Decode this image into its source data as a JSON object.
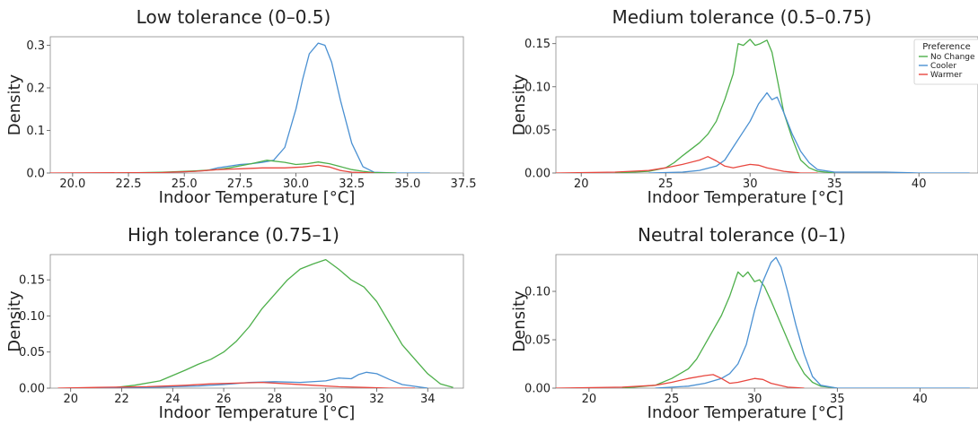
{
  "colors": {
    "No Change": "#4daf4a",
    "Cooler": "#4a90d2",
    "Warmer": "#e8473f"
  },
  "legend": {
    "title": "Preference",
    "placement": "upper right of Medium tolerance panel",
    "entries": [
      "No Change",
      "Cooler",
      "Warmer"
    ]
  },
  "chart_data": [
    {
      "type": "line",
      "title": "Low tolerance (0–0.5)",
      "xlabel": "Indoor Temperature [°C]",
      "ylabel": "Density",
      "xlim": [
        19.0,
        37.5
      ],
      "ylim": [
        0,
        0.32
      ],
      "xticks": [
        20.0,
        22.5,
        25.0,
        27.5,
        30.0,
        32.5,
        35.0,
        37.5
      ],
      "yticks": [
        0.0,
        0.1,
        0.2,
        0.3
      ],
      "xtick_decimals": 1,
      "ytick_decimals": 1,
      "show_legend": false,
      "series": [
        {
          "name": "Cooler",
          "x": [
            22.5,
            24.0,
            25.0,
            26.0,
            26.5,
            27.0,
            27.5,
            28.0,
            28.5,
            29.0,
            29.5,
            30.0,
            30.3,
            30.6,
            31.0,
            31.3,
            31.6,
            32.0,
            32.5,
            33.0,
            33.5,
            34.5,
            36.0
          ],
          "y": [
            0.0,
            0.001,
            0.003,
            0.006,
            0.012,
            0.016,
            0.02,
            0.022,
            0.025,
            0.03,
            0.06,
            0.15,
            0.22,
            0.28,
            0.305,
            0.3,
            0.26,
            0.17,
            0.07,
            0.015,
            0.002,
            0.0,
            0.0
          ]
        },
        {
          "name": "No Change",
          "x": [
            22.0,
            24.0,
            25.5,
            26.5,
            27.0,
            28.0,
            28.7,
            29.5,
            30.0,
            30.5,
            31.0,
            31.5,
            32.0,
            32.5,
            33.0,
            33.5,
            34.5
          ],
          "y": [
            0.0,
            0.002,
            0.005,
            0.008,
            0.012,
            0.022,
            0.03,
            0.025,
            0.02,
            0.022,
            0.026,
            0.022,
            0.015,
            0.008,
            0.004,
            0.001,
            0.0
          ]
        },
        {
          "name": "Warmer",
          "x": [
            19.0,
            24.0,
            25.5,
            26.5,
            27.5,
            28.5,
            29.5,
            30.3,
            31.0,
            31.5,
            32.0,
            32.5,
            33.5
          ],
          "y": [
            0.0,
            0.001,
            0.004,
            0.008,
            0.01,
            0.012,
            0.012,
            0.014,
            0.018,
            0.014,
            0.006,
            0.002,
            0.0
          ]
        }
      ]
    },
    {
      "type": "line",
      "title": "Medium tolerance (0.5–0.75)",
      "xlabel": "Indoor Temperature [°C]",
      "ylabel": "Density",
      "xlim": [
        18.5,
        43.5
      ],
      "ylim": [
        0,
        0.158
      ],
      "xticks": [
        20,
        25,
        30,
        35,
        40
      ],
      "yticks": [
        0.0,
        0.05,
        0.1,
        0.15
      ],
      "xtick_decimals": 0,
      "ytick_decimals": 2,
      "show_legend": true,
      "series": [
        {
          "name": "No Change",
          "x": [
            22.0,
            24.0,
            25.0,
            25.5,
            26.0,
            27.0,
            27.5,
            28.0,
            28.5,
            29.0,
            29.3,
            29.6,
            30.0,
            30.3,
            30.6,
            31.0,
            31.3,
            31.6,
            32.0,
            32.5,
            33.0,
            33.5,
            34.0,
            35.0
          ],
          "y": [
            0.0,
            0.002,
            0.006,
            0.012,
            0.02,
            0.035,
            0.045,
            0.06,
            0.085,
            0.115,
            0.15,
            0.148,
            0.155,
            0.148,
            0.15,
            0.154,
            0.14,
            0.11,
            0.07,
            0.04,
            0.015,
            0.006,
            0.002,
            0.0
          ]
        },
        {
          "name": "Cooler",
          "x": [
            24.0,
            26.0,
            27.0,
            28.0,
            28.5,
            29.0,
            29.5,
            30.0,
            30.5,
            31.0,
            31.3,
            31.6,
            32.0,
            32.5,
            33.0,
            33.5,
            34.0,
            35.0,
            38.0,
            40.0,
            43.0
          ],
          "y": [
            0.0,
            0.001,
            0.003,
            0.008,
            0.015,
            0.03,
            0.045,
            0.06,
            0.08,
            0.093,
            0.085,
            0.088,
            0.07,
            0.045,
            0.025,
            0.012,
            0.004,
            0.001,
            0.001,
            0.0,
            0.0
          ]
        },
        {
          "name": "Warmer",
          "x": [
            18.5,
            22.0,
            24.0,
            25.0,
            26.0,
            27.0,
            27.5,
            28.0,
            28.5,
            29.0,
            29.5,
            30.0,
            30.5,
            31.0,
            32.0,
            33.0,
            34.0
          ],
          "y": [
            0.0,
            0.001,
            0.003,
            0.006,
            0.01,
            0.015,
            0.019,
            0.014,
            0.008,
            0.006,
            0.008,
            0.01,
            0.009,
            0.006,
            0.002,
            0.0,
            0.0
          ]
        }
      ]
    },
    {
      "type": "line",
      "title": "High tolerance (0.75–1)",
      "xlabel": "Indoor Temperature [°C]",
      "ylabel": "Density",
      "xlim": [
        19.2,
        35.4
      ],
      "ylim": [
        0,
        0.185
      ],
      "xticks": [
        20,
        22,
        24,
        26,
        28,
        30,
        32,
        34
      ],
      "yticks": [
        0.0,
        0.05,
        0.1,
        0.15
      ],
      "xtick_decimals": 0,
      "ytick_decimals": 2,
      "show_legend": false,
      "series": [
        {
          "name": "No Change",
          "x": [
            21.5,
            22.5,
            23.5,
            24.5,
            25.0,
            25.5,
            26.0,
            26.5,
            27.0,
            27.5,
            28.0,
            28.5,
            29.0,
            29.5,
            30.0,
            30.5,
            31.0,
            31.5,
            32.0,
            32.5,
            33.0,
            33.5,
            34.0,
            34.5,
            35.0
          ],
          "y": [
            0.0,
            0.004,
            0.01,
            0.025,
            0.033,
            0.04,
            0.05,
            0.065,
            0.085,
            0.11,
            0.13,
            0.15,
            0.165,
            0.172,
            0.178,
            0.165,
            0.15,
            0.14,
            0.12,
            0.09,
            0.06,
            0.04,
            0.02,
            0.006,
            0.001
          ]
        },
        {
          "name": "Cooler",
          "x": [
            21.0,
            23.0,
            25.0,
            26.0,
            27.0,
            28.0,
            29.0,
            30.0,
            30.5,
            31.0,
            31.3,
            31.6,
            32.0,
            32.5,
            33.0,
            34.0
          ],
          "y": [
            0.0,
            0.001,
            0.003,
            0.005,
            0.008,
            0.009,
            0.008,
            0.01,
            0.014,
            0.013,
            0.019,
            0.022,
            0.02,
            0.012,
            0.005,
            0.0
          ]
        },
        {
          "name": "Warmer",
          "x": [
            19.5,
            21.0,
            23.0,
            24.5,
            25.5,
            26.5,
            27.5,
            28.5,
            29.5,
            30.5,
            31.5,
            32.5,
            33.5
          ],
          "y": [
            0.0,
            0.001,
            0.002,
            0.004,
            0.006,
            0.007,
            0.008,
            0.006,
            0.004,
            0.002,
            0.001,
            0.0,
            0.0
          ]
        }
      ]
    },
    {
      "type": "line",
      "title": "Neutral tolerance (0–1)",
      "xlabel": "Indoor Temperature [°C]",
      "ylabel": "Density",
      "xlim": [
        18.0,
        43.5
      ],
      "ylim": [
        0,
        0.138
      ],
      "xticks": [
        20,
        25,
        30,
        35,
        40
      ],
      "yticks": [
        0.0,
        0.05,
        0.1
      ],
      "xtick_decimals": 0,
      "ytick_decimals": 2,
      "show_legend": false,
      "series": [
        {
          "name": "No Change",
          "x": [
            22.0,
            24.0,
            25.0,
            26.0,
            26.5,
            27.0,
            27.5,
            28.0,
            28.5,
            29.0,
            29.3,
            29.6,
            30.0,
            30.3,
            30.6,
            31.0,
            31.5,
            32.0,
            32.5,
            33.0,
            33.5,
            34.0,
            35.0
          ],
          "y": [
            0.0,
            0.003,
            0.01,
            0.02,
            0.03,
            0.045,
            0.06,
            0.075,
            0.095,
            0.12,
            0.115,
            0.12,
            0.11,
            0.112,
            0.105,
            0.09,
            0.07,
            0.05,
            0.03,
            0.015,
            0.006,
            0.002,
            0.0
          ]
        },
        {
          "name": "Cooler",
          "x": [
            24.0,
            26.0,
            27.0,
            28.0,
            28.5,
            29.0,
            29.5,
            30.0,
            30.5,
            31.0,
            31.3,
            31.6,
            32.0,
            32.5,
            33.0,
            33.5,
            34.0,
            35.0,
            40.0,
            43.0
          ],
          "y": [
            0.0,
            0.002,
            0.005,
            0.01,
            0.015,
            0.025,
            0.045,
            0.08,
            0.11,
            0.13,
            0.135,
            0.125,
            0.1,
            0.065,
            0.035,
            0.012,
            0.003,
            0.0,
            0.0,
            0.0
          ]
        },
        {
          "name": "Warmer",
          "x": [
            18.0,
            22.0,
            24.0,
            25.0,
            26.0,
            27.0,
            27.5,
            28.0,
            28.5,
            29.0,
            30.0,
            30.5,
            31.0,
            32.0,
            33.0
          ],
          "y": [
            0.0,
            0.001,
            0.003,
            0.006,
            0.01,
            0.013,
            0.014,
            0.01,
            0.005,
            0.006,
            0.01,
            0.009,
            0.005,
            0.001,
            0.0
          ]
        }
      ]
    }
  ]
}
